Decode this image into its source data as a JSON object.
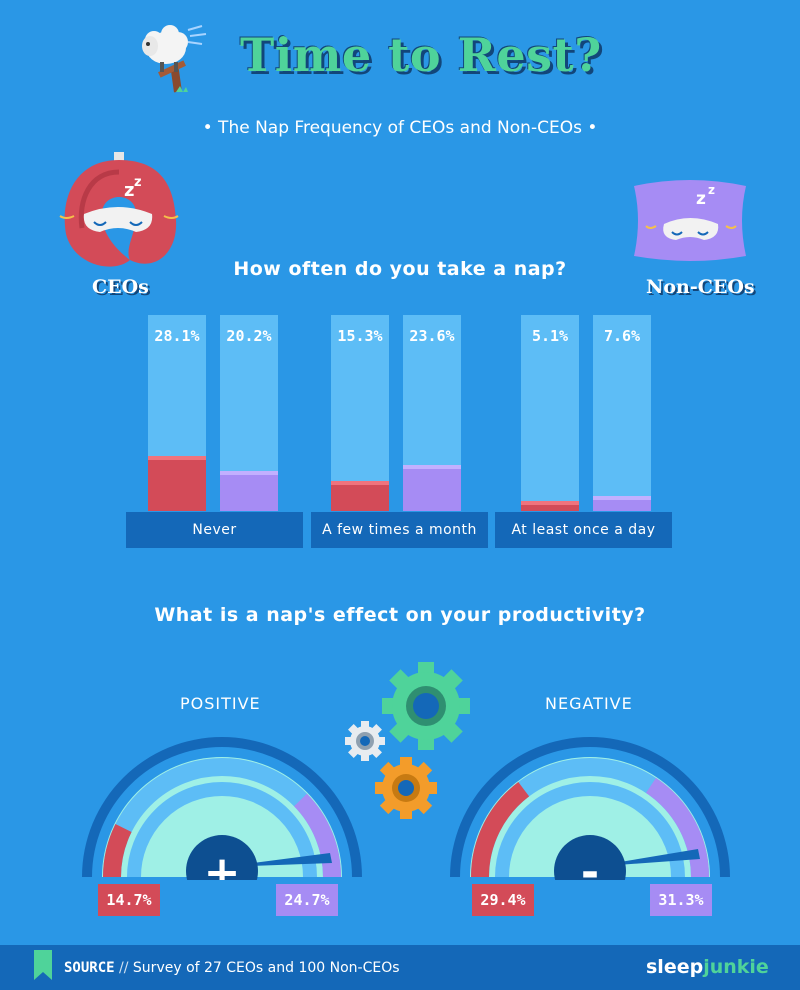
{
  "header": {
    "title": "Time to Rest?",
    "subtitle": "• The Nap Frequency of CEOs and Non-CEOs •"
  },
  "groups": {
    "ceo_label": "CEOs",
    "nonceo_label": "Non-CEOs"
  },
  "chart_data": [
    {
      "type": "bar",
      "title": "How often do you take a nap?",
      "categories": [
        "Never",
        "A few times a month",
        "At least once a day"
      ],
      "series": [
        {
          "name": "CEOs",
          "values": [
            28.1,
            15.3,
            5.1
          ],
          "labels": [
            "28.1%",
            "15.3%",
            "5.1%"
          ],
          "color": "#d34b58"
        },
        {
          "name": "Non-CEOs",
          "values": [
            20.2,
            23.6,
            7.6
          ],
          "labels": [
            "20.2%",
            "23.6%",
            "7.6%"
          ],
          "color": "#a68cf4"
        }
      ],
      "ylim": [
        0,
        100
      ]
    },
    {
      "type": "gauge",
      "title": "What is a nap's effect on your productivity?",
      "gauges": [
        {
          "label": "POSITIVE",
          "sign": "+",
          "ceo": 14.7,
          "ceo_label": "14.7%",
          "nonceo": 24.7,
          "nonceo_label": "24.7%"
        },
        {
          "label": "NEGATIVE",
          "sign": "-",
          "ceo": 29.4,
          "ceo_label": "29.4%",
          "nonceo": 31.3,
          "nonceo_label": "31.3%"
        }
      ]
    }
  ],
  "colors": {
    "background": "#2a97e6",
    "ceo": "#d34b58",
    "nonceo": "#a68cf4",
    "accent_green": "#4fd39a",
    "dark_blue": "#1468b8"
  },
  "footer": {
    "source_label": "SOURCE",
    "source_sep": "//",
    "source_text": "Survey of 27 CEOs and 100 Non-CEOs",
    "brand_a": "sleep",
    "brand_b": "junkie"
  },
  "icons": [
    "sheep-icon",
    "travel-pillow-icon",
    "pillow-icon",
    "gear-icon",
    "source-bookmark-icon"
  ]
}
